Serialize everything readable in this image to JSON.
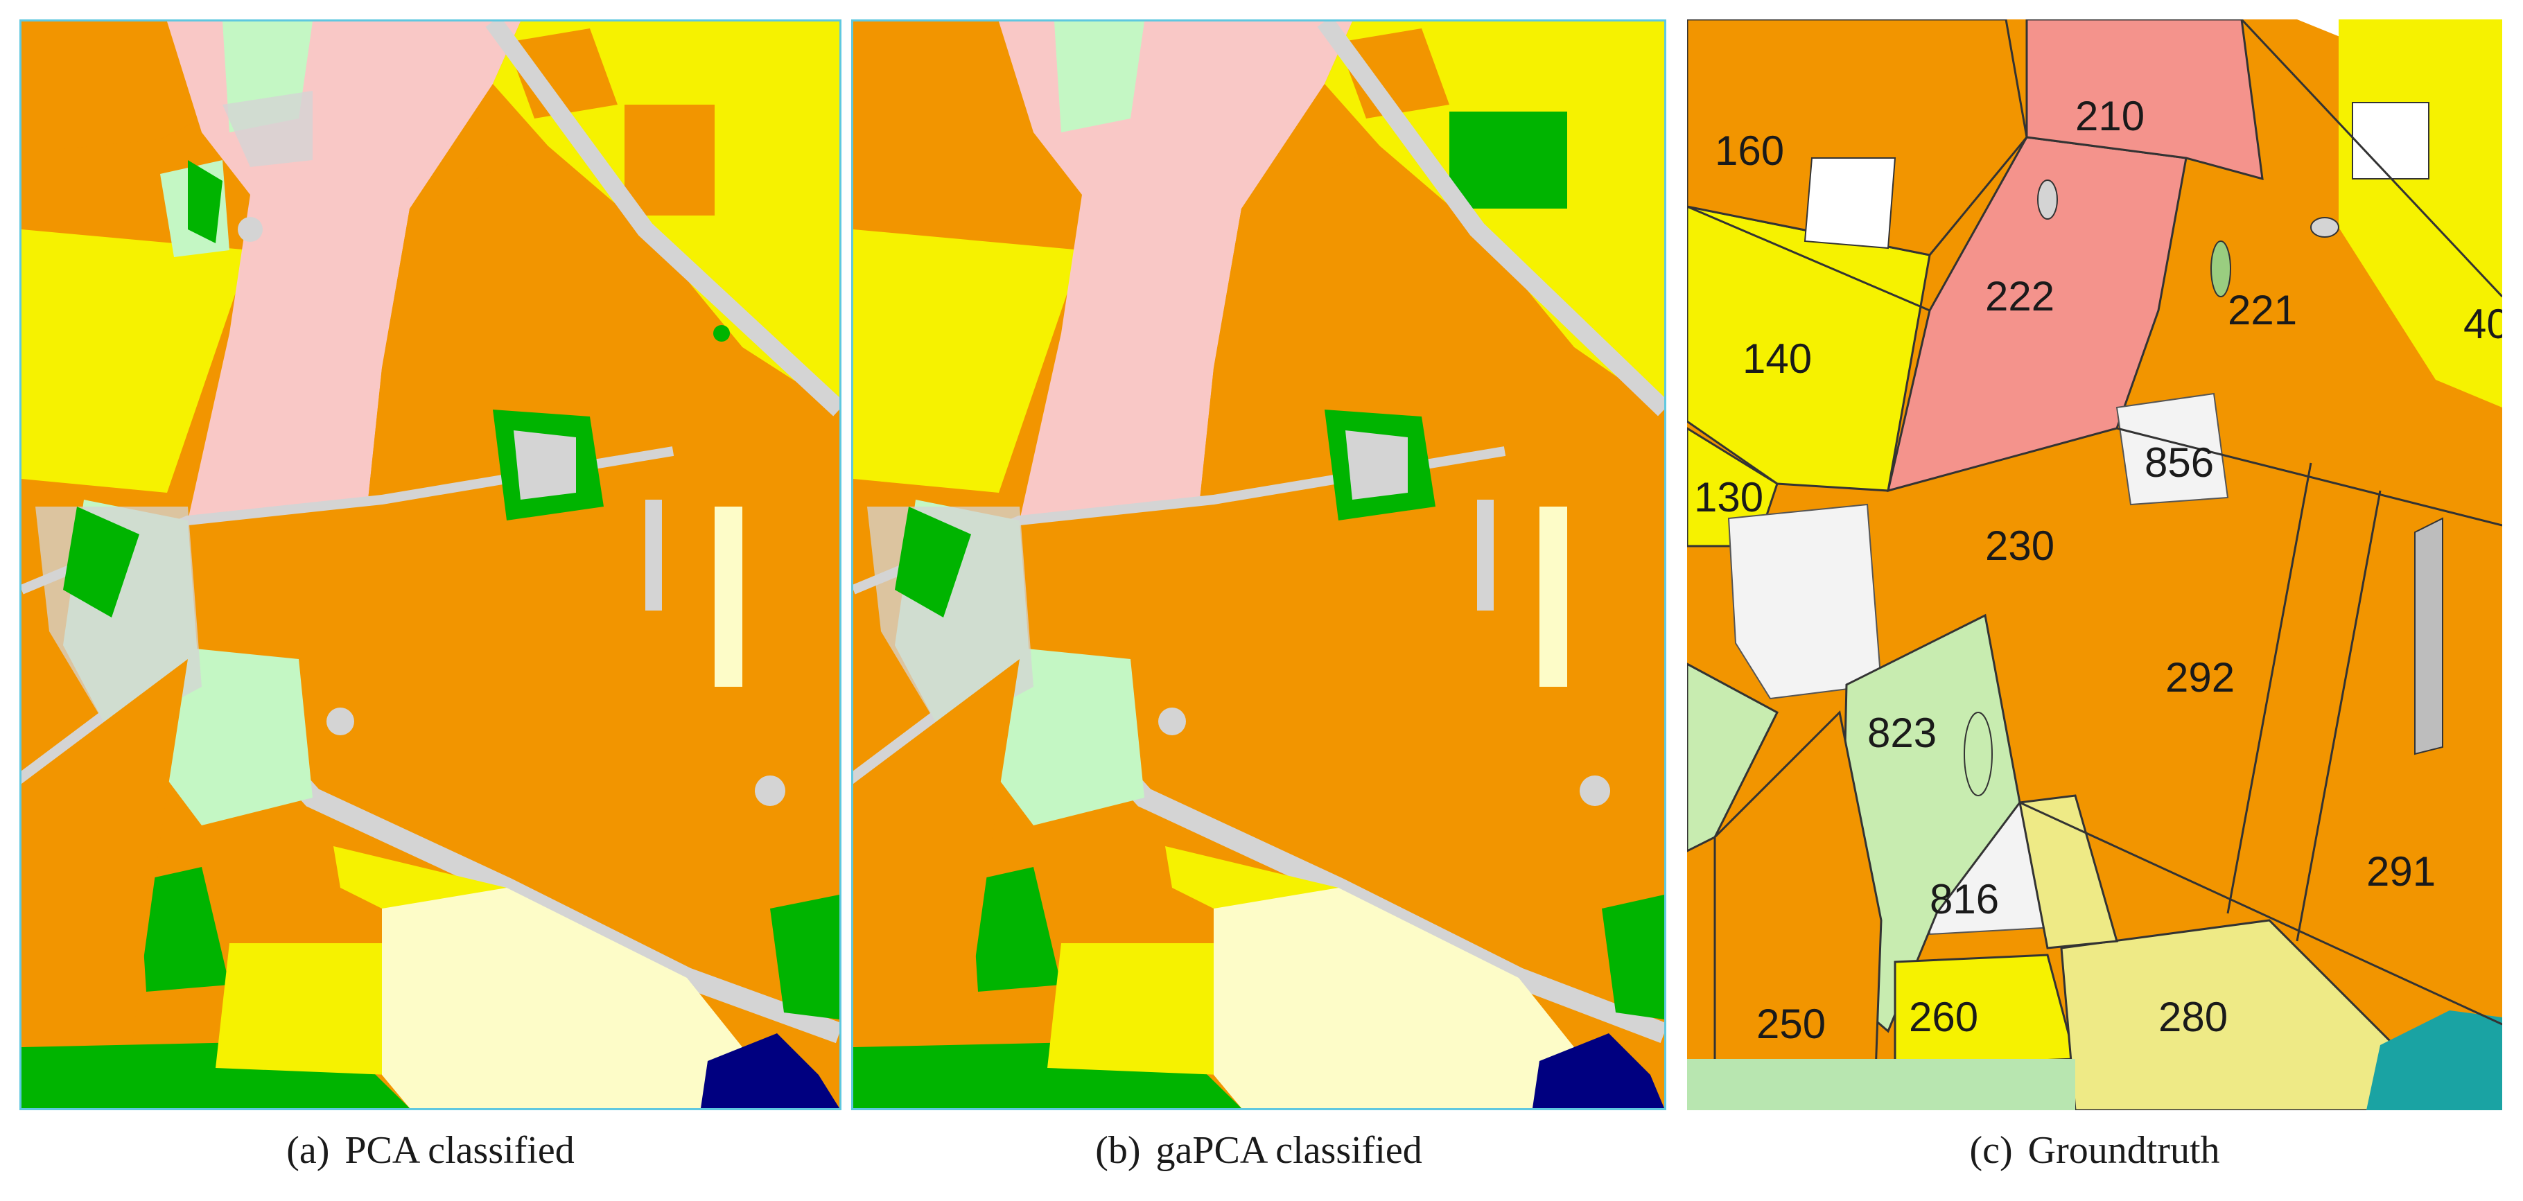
{
  "captions": {
    "a": {
      "tag": "(a)",
      "text": "PCA classified"
    },
    "b": {
      "tag": "(b)",
      "text": "gaPCA classified"
    },
    "c": {
      "tag": "(c)",
      "text": "Groundtruth"
    }
  },
  "parcel_labels": {
    "l160": "160",
    "l210": "210",
    "l222": "222",
    "l221": "221",
    "l140": "140",
    "l40": "40",
    "l130": "130",
    "l856": "856",
    "l230": "230",
    "l292": "292",
    "l823": "823",
    "l816": "816",
    "l291": "291",
    "l250": "250",
    "l260": "260",
    "l280": "280"
  },
  "colors": {
    "orange": "#f29500",
    "pink": "#f9c8c6",
    "yellow": "#f6f200",
    "pale_yellow": "#fdfcc8",
    "light_green": "#c4f7c4",
    "green": "#00b400",
    "grey": "#d4d4d4",
    "navy": "#000080",
    "salmon": "#f4938c",
    "teal": "#1aa3a3",
    "khaki": "#eeea86",
    "border": "#5fc8e0"
  }
}
